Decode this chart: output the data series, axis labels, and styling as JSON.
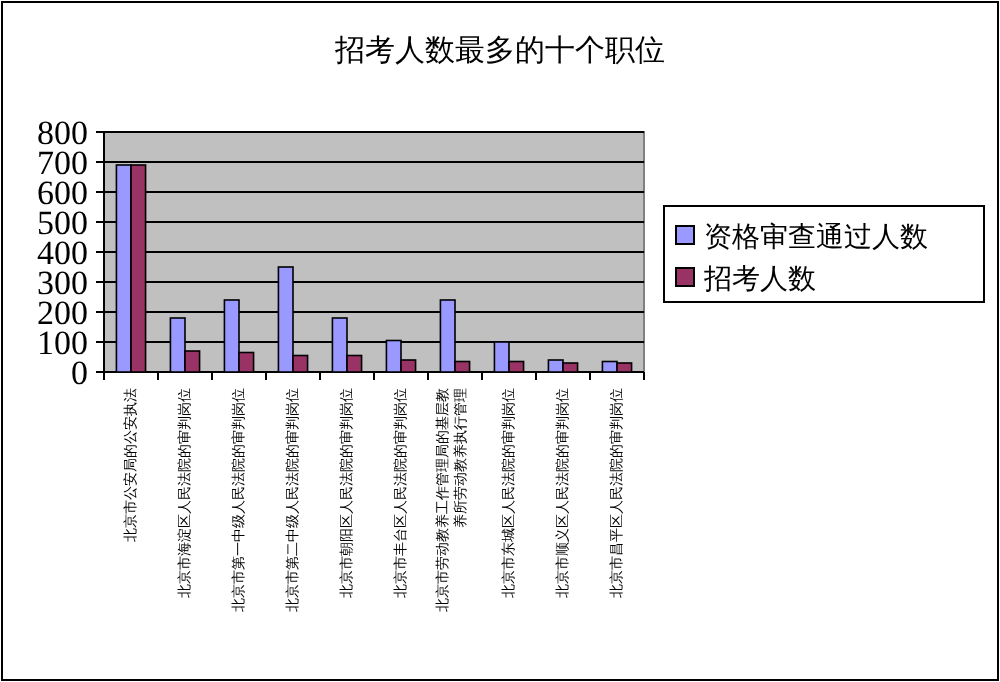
{
  "chart_data": {
    "type": "bar",
    "title": "招考人数最多的十个职位",
    "categories": [
      "北京市公安局的公安执法",
      "北京市海淀区人民法院的审判岗位",
      "北京市第一中级人民法院的审判岗位",
      "北京市第二中级人民法院的审判岗位",
      "北京市朝阳区人民法院的审判岗位",
      "北京市丰台区人民法院的审判岗位",
      "北京市劳动教养工作管理局的基层教养所劳动教养执行管理",
      "北京市东城区人民法院的审判岗位",
      "北京市顺义区人民法院的审判岗位",
      "北京市昌平区人民法院的审判岗位"
    ],
    "series": [
      {
        "name": "资格审查通过人数",
        "color": "#9999ff",
        "values": [
          690,
          180,
          240,
          350,
          180,
          105,
          240,
          100,
          40,
          35
        ]
      },
      {
        "name": "招考人数",
        "color": "#993366",
        "values": [
          690,
          70,
          65,
          55,
          55,
          40,
          35,
          35,
          30,
          30
        ]
      }
    ],
    "ylim": [
      0,
      800
    ],
    "yticks": [
      0,
      100,
      200,
      300,
      400,
      500,
      600,
      700,
      800
    ],
    "grid": "y",
    "legend": "right"
  }
}
